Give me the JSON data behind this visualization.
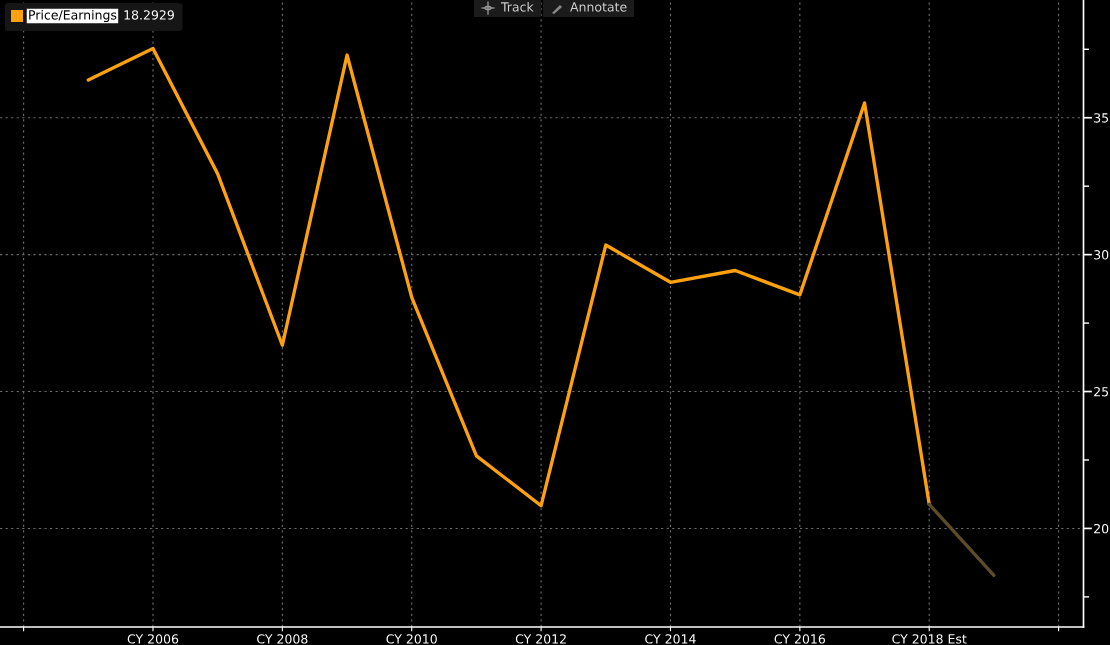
{
  "chart_data": {
    "type": "line",
    "categories": [
      null,
      "CY 2006",
      null,
      "CY 2008",
      null,
      "CY 2010",
      null,
      "CY 2012",
      null,
      "CY 2014",
      null,
      "CY 2016",
      null,
      "CY 2018 Est",
      null
    ],
    "series": [
      {
        "name": "Price/Earnings",
        "color": "#ffa10f",
        "values": [
          36.38,
          37.53,
          32.95,
          26.69,
          37.29,
          28.44,
          22.65,
          20.83,
          30.35,
          28.99,
          29.42,
          28.53,
          35.54,
          20.88,
          null
        ]
      },
      {
        "color": "#5e4b2c",
        "values": [
          null,
          null,
          null,
          null,
          null,
          null,
          null,
          null,
          null,
          null,
          null,
          null,
          null,
          20.88,
          18.29
        ]
      }
    ],
    "ylim": [
      16.4,
      39.3
    ],
    "yticks": [
      {
        "value": 17.5,
        "label": null
      },
      20,
      {
        "value": 22.5,
        "label": null
      },
      25,
      {
        "value": 27.5,
        "label": null
      },
      30,
      {
        "value": 32.5,
        "label": null
      },
      35,
      {
        "value": 37.5,
        "label": null
      }
    ],
    "grid": true,
    "legend": "top left",
    "line_style": "solid",
    "annotations": [
      "18.2929",
      "Track",
      "Annotate"
    ]
  }
}
